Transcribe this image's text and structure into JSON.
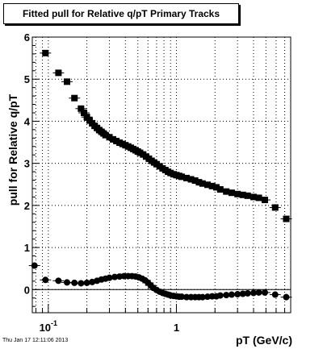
{
  "chart_data": {
    "type": "scatter",
    "title": "Fitted pull for Relative q/pT  Primary Tracks",
    "xlabel": "pT (GeV/c)",
    "ylabel": "pull for Relative q/pT",
    "x_scale": "log",
    "xlim": [
      0.075,
      7.8
    ],
    "ylim": [
      -0.55,
      6.0
    ],
    "grid": true,
    "x_tick_labels": [
      {
        "value": 0.1,
        "base": "10",
        "exp": "-1"
      },
      {
        "value": 1,
        "base": "1",
        "exp": ""
      }
    ],
    "y_ticks": [
      0,
      1,
      2,
      3,
      4,
      5,
      6
    ],
    "series": [
      {
        "marker": "square",
        "points": [
          [
            0.095,
            5.62
          ],
          [
            0.12,
            5.15
          ],
          [
            0.14,
            4.94
          ],
          [
            0.16,
            4.55
          ],
          [
            0.18,
            4.3
          ],
          [
            0.19,
            4.2
          ],
          [
            0.2,
            4.1
          ],
          [
            0.21,
            4.02
          ],
          [
            0.22,
            3.95
          ],
          [
            0.23,
            3.89
          ],
          [
            0.24,
            3.84
          ],
          [
            0.25,
            3.79
          ],
          [
            0.26,
            3.75
          ],
          [
            0.27,
            3.71
          ],
          [
            0.28,
            3.67
          ],
          [
            0.3,
            3.62
          ],
          [
            0.32,
            3.57
          ],
          [
            0.34,
            3.53
          ],
          [
            0.36,
            3.49
          ],
          [
            0.38,
            3.46
          ],
          [
            0.4,
            3.43
          ],
          [
            0.42,
            3.4
          ],
          [
            0.44,
            3.37
          ],
          [
            0.46,
            3.34
          ],
          [
            0.48,
            3.31
          ],
          [
            0.5,
            3.28
          ],
          [
            0.52,
            3.25
          ],
          [
            0.55,
            3.21
          ],
          [
            0.58,
            3.16
          ],
          [
            0.61,
            3.11
          ],
          [
            0.64,
            3.06
          ],
          [
            0.67,
            3.02
          ],
          [
            0.7,
            2.98
          ],
          [
            0.74,
            2.93
          ],
          [
            0.78,
            2.88
          ],
          [
            0.82,
            2.84
          ],
          [
            0.86,
            2.8
          ],
          [
            0.9,
            2.77
          ],
          [
            0.95,
            2.74
          ],
          [
            1.0,
            2.72
          ],
          [
            1.05,
            2.7
          ],
          [
            1.1,
            2.68
          ],
          [
            1.2,
            2.65
          ],
          [
            1.3,
            2.62
          ],
          [
            1.4,
            2.59
          ],
          [
            1.5,
            2.55
          ],
          [
            1.6,
            2.52
          ],
          [
            1.75,
            2.49
          ],
          [
            1.9,
            2.46
          ],
          [
            2.05,
            2.43
          ],
          [
            2.2,
            2.38
          ],
          [
            2.45,
            2.33
          ],
          [
            2.7,
            2.3
          ],
          [
            3.0,
            2.27
          ],
          [
            3.3,
            2.25
          ],
          [
            3.6,
            2.23
          ],
          [
            4.0,
            2.2
          ],
          [
            4.4,
            2.18
          ],
          [
            4.9,
            2.13
          ],
          [
            5.9,
            1.95
          ],
          [
            7.2,
            1.68
          ]
        ]
      },
      {
        "marker": "circle",
        "points": [
          [
            0.078,
            0.57
          ],
          [
            0.095,
            0.23
          ],
          [
            0.12,
            0.21
          ],
          [
            0.14,
            0.17
          ],
          [
            0.16,
            0.16
          ],
          [
            0.18,
            0.15
          ],
          [
            0.2,
            0.16
          ],
          [
            0.22,
            0.18
          ],
          [
            0.24,
            0.21
          ],
          [
            0.26,
            0.24
          ],
          [
            0.28,
            0.26
          ],
          [
            0.3,
            0.28
          ],
          [
            0.33,
            0.3
          ],
          [
            0.36,
            0.31
          ],
          [
            0.39,
            0.32
          ],
          [
            0.42,
            0.32
          ],
          [
            0.45,
            0.32
          ],
          [
            0.48,
            0.31
          ],
          [
            0.51,
            0.29
          ],
          [
            0.54,
            0.26
          ],
          [
            0.57,
            0.22
          ],
          [
            0.6,
            0.16
          ],
          [
            0.63,
            0.1
          ],
          [
            0.66,
            0.04
          ],
          [
            0.7,
            -0.01
          ],
          [
            0.74,
            -0.05
          ],
          [
            0.78,
            -0.08
          ],
          [
            0.82,
            -0.1
          ],
          [
            0.86,
            -0.12
          ],
          [
            0.9,
            -0.14
          ],
          [
            0.95,
            -0.15
          ],
          [
            1.0,
            -0.16
          ],
          [
            1.05,
            -0.17
          ],
          [
            1.1,
            -0.17
          ],
          [
            1.2,
            -0.18
          ],
          [
            1.3,
            -0.18
          ],
          [
            1.4,
            -0.18
          ],
          [
            1.5,
            -0.18
          ],
          [
            1.6,
            -0.18
          ],
          [
            1.75,
            -0.17
          ],
          [
            1.9,
            -0.16
          ],
          [
            2.05,
            -0.16
          ],
          [
            2.2,
            -0.14
          ],
          [
            2.45,
            -0.13
          ],
          [
            2.7,
            -0.12
          ],
          [
            3.0,
            -0.11
          ],
          [
            3.3,
            -0.1
          ],
          [
            3.6,
            -0.09
          ],
          [
            4.0,
            -0.08
          ],
          [
            4.4,
            -0.07
          ],
          [
            4.9,
            -0.07
          ],
          [
            5.9,
            -0.12
          ],
          [
            7.2,
            -0.18
          ]
        ]
      }
    ]
  },
  "footer": {
    "timestamp": "Thu Jan 17 12:11:06 2013"
  }
}
